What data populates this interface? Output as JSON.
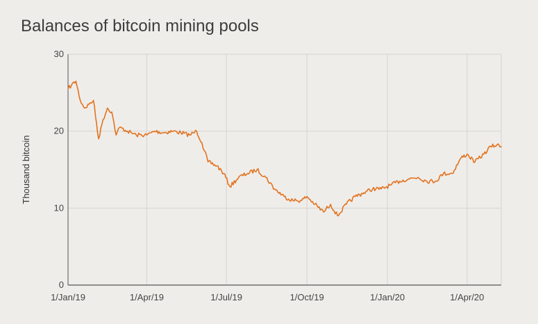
{
  "chart_data": {
    "type": "line",
    "title": "Balances of bitcoin mining pools",
    "xlabel": "",
    "ylabel": "Thousand bitcoin",
    "ylim": [
      0,
      30
    ],
    "yticks": [
      0,
      10,
      20,
      30
    ],
    "xlim": [
      "2019-01-01",
      "2020-05-10"
    ],
    "xticks": [
      {
        "date": "2019-01-01",
        "label": "1/Jan/19"
      },
      {
        "date": "2019-04-01",
        "label": "1/Apr/19"
      },
      {
        "date": "2019-07-01",
        "label": "1/Jul/19"
      },
      {
        "date": "2019-10-01",
        "label": "1/Oct/19"
      },
      {
        "date": "2020-01-01",
        "label": "1/Jan/20"
      },
      {
        "date": "2020-04-01",
        "label": "1/Apr/20"
      }
    ],
    "grid": true,
    "colors": {
      "line": "#e2731f",
      "grid": "#d6d4d1",
      "axis": "#555555"
    },
    "series": [
      {
        "x": [
          "2019-01-01",
          "2019-01-05",
          "2019-01-10",
          "2019-01-15",
          "2019-01-20",
          "2019-01-25",
          "2019-01-30",
          "2019-02-05",
          "2019-02-10",
          "2019-02-15",
          "2019-02-20",
          "2019-02-25",
          "2019-03-01",
          "2019-03-10",
          "2019-03-20",
          "2019-04-01",
          "2019-04-10",
          "2019-04-20",
          "2019-05-01",
          "2019-05-10",
          "2019-05-20",
          "2019-05-28",
          "2019-06-03",
          "2019-06-10",
          "2019-06-20",
          "2019-06-28",
          "2019-07-05",
          "2019-07-15",
          "2019-07-25",
          "2019-08-05",
          "2019-08-15",
          "2019-08-25",
          "2019-09-05",
          "2019-09-15",
          "2019-09-25",
          "2019-10-01",
          "2019-10-10",
          "2019-10-20",
          "2019-10-28",
          "2019-11-05",
          "2019-11-15",
          "2019-11-25",
          "2019-12-05",
          "2019-12-15",
          "2019-12-25",
          "2020-01-05",
          "2020-01-15",
          "2020-01-25",
          "2020-02-05",
          "2020-02-15",
          "2020-02-25",
          "2020-03-05",
          "2020-03-15",
          "2020-03-25",
          "2020-04-01",
          "2020-04-10",
          "2020-04-20",
          "2020-04-28",
          "2020-05-05",
          "2020-05-10"
        ],
        "y": [
          25.5,
          26.0,
          26.5,
          24.0,
          23.0,
          23.5,
          24.0,
          19.0,
          21.5,
          23.0,
          22.5,
          19.5,
          20.5,
          20.0,
          19.5,
          19.5,
          20.0,
          19.8,
          20.0,
          19.8,
          19.5,
          20.0,
          18.5,
          16.0,
          15.5,
          14.5,
          12.8,
          14.0,
          14.5,
          15.0,
          14.0,
          12.5,
          11.5,
          11.0,
          11.0,
          11.5,
          10.5,
          9.5,
          10.5,
          9.0,
          10.5,
          11.5,
          12.0,
          12.5,
          12.5,
          13.0,
          13.5,
          13.8,
          14.0,
          13.5,
          13.5,
          14.5,
          14.5,
          16.5,
          17.0,
          16.0,
          17.0,
          18.0,
          18.2,
          18.0
        ]
      }
    ]
  }
}
